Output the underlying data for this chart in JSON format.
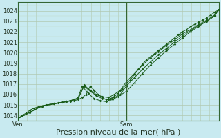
{
  "background_color": "#c8eaf0",
  "plot_bg_color": "#c8eaf0",
  "grid_major_color": "#b0c8b0",
  "grid_minor_color": "#c0d8c0",
  "line_color": "#1a5c1a",
  "marker_color": "#1a5c1a",
  "ylim": [
    1013.5,
    1024.8
  ],
  "yticks": [
    1014,
    1015,
    1016,
    1017,
    1018,
    1019,
    1020,
    1021,
    1022,
    1023,
    1024
  ],
  "xlabel": "Pression niveau de la mer( hPa )",
  "xlabel_fontsize": 8,
  "tick_fontsize": 6,
  "xtick_labels": [
    "Ven",
    "Sam"
  ],
  "xtick_positions": [
    0.0,
    0.54
  ],
  "vline_x": 0.54,
  "vline_color": "#336633",
  "series1_x": [
    0.0,
    0.02,
    0.04,
    0.06,
    0.08,
    0.1,
    0.12,
    0.14,
    0.16,
    0.18,
    0.2,
    0.22,
    0.24,
    0.26,
    0.28,
    0.3,
    0.32,
    0.34,
    0.36,
    0.38,
    0.4,
    0.42,
    0.44,
    0.46,
    0.48,
    0.5,
    0.52,
    0.54,
    0.56,
    0.58,
    0.6,
    0.62,
    0.64,
    0.66,
    0.68,
    0.7,
    0.72,
    0.74,
    0.76,
    0.78,
    0.8,
    0.82,
    0.84,
    0.86,
    0.88,
    0.9,
    0.92,
    0.94,
    0.96,
    0.98,
    1.0
  ],
  "series1_y": [
    1013.7,
    1014.0,
    1014.2,
    1014.5,
    1014.7,
    1014.8,
    1014.9,
    1015.0,
    1015.05,
    1015.1,
    1015.2,
    1015.25,
    1015.3,
    1015.35,
    1015.4,
    1015.5,
    1015.7,
    1016.0,
    1016.8,
    1016.4,
    1016.0,
    1015.7,
    1015.5,
    1015.6,
    1015.8,
    1016.1,
    1016.5,
    1017.0,
    1017.4,
    1017.9,
    1018.4,
    1018.9,
    1019.3,
    1019.6,
    1019.9,
    1020.2,
    1020.5,
    1020.8,
    1021.1,
    1021.4,
    1021.7,
    1022.0,
    1022.2,
    1022.5,
    1022.7,
    1022.9,
    1023.1,
    1023.3,
    1023.6,
    1023.85,
    1024.1
  ],
  "series2_x": [
    0.0,
    0.06,
    0.12,
    0.18,
    0.24,
    0.3,
    0.33,
    0.36,
    0.39,
    0.42,
    0.45,
    0.48,
    0.51,
    0.54,
    0.58,
    0.62,
    0.66,
    0.7,
    0.74,
    0.78,
    0.82,
    0.86,
    0.9,
    0.94,
    0.98,
    1.0
  ],
  "series2_y": [
    1013.7,
    1014.3,
    1014.9,
    1015.1,
    1015.3,
    1015.6,
    1016.8,
    1016.3,
    1015.9,
    1015.6,
    1015.5,
    1015.7,
    1016.0,
    1016.8,
    1017.6,
    1018.4,
    1019.1,
    1019.8,
    1020.4,
    1021.0,
    1021.6,
    1022.1,
    1022.6,
    1023.0,
    1023.5,
    1024.1
  ],
  "series3_x": [
    0.0,
    0.06,
    0.12,
    0.18,
    0.24,
    0.3,
    0.33,
    0.36,
    0.39,
    0.42,
    0.45,
    0.48,
    0.51,
    0.54,
    0.58,
    0.62,
    0.66,
    0.7,
    0.74,
    0.78,
    0.82,
    0.86,
    0.9,
    0.94,
    0.98,
    1.0
  ],
  "series3_y": [
    1013.7,
    1014.3,
    1014.9,
    1015.1,
    1015.3,
    1015.6,
    1016.9,
    1016.4,
    1016.0,
    1015.8,
    1015.7,
    1016.0,
    1016.4,
    1017.2,
    1018.0,
    1018.8,
    1019.5,
    1020.1,
    1020.7,
    1021.2,
    1021.8,
    1022.2,
    1022.7,
    1023.1,
    1023.6,
    1024.1
  ],
  "series4_x": [
    0.0,
    0.06,
    0.12,
    0.18,
    0.24,
    0.28,
    0.3,
    0.32,
    0.35,
    0.38,
    0.41,
    0.44,
    0.47,
    0.5,
    0.54,
    0.58,
    0.62,
    0.66,
    0.7,
    0.74,
    0.78,
    0.82,
    0.86,
    0.9,
    0.94,
    0.98,
    1.0
  ],
  "series4_y": [
    1013.7,
    1014.3,
    1014.9,
    1015.1,
    1015.3,
    1015.5,
    1015.7,
    1016.8,
    1016.1,
    1015.6,
    1015.4,
    1015.3,
    1015.5,
    1015.8,
    1016.3,
    1017.1,
    1018.0,
    1018.8,
    1019.5,
    1020.2,
    1020.8,
    1021.4,
    1022.0,
    1022.5,
    1023.0,
    1023.5,
    1024.1
  ]
}
